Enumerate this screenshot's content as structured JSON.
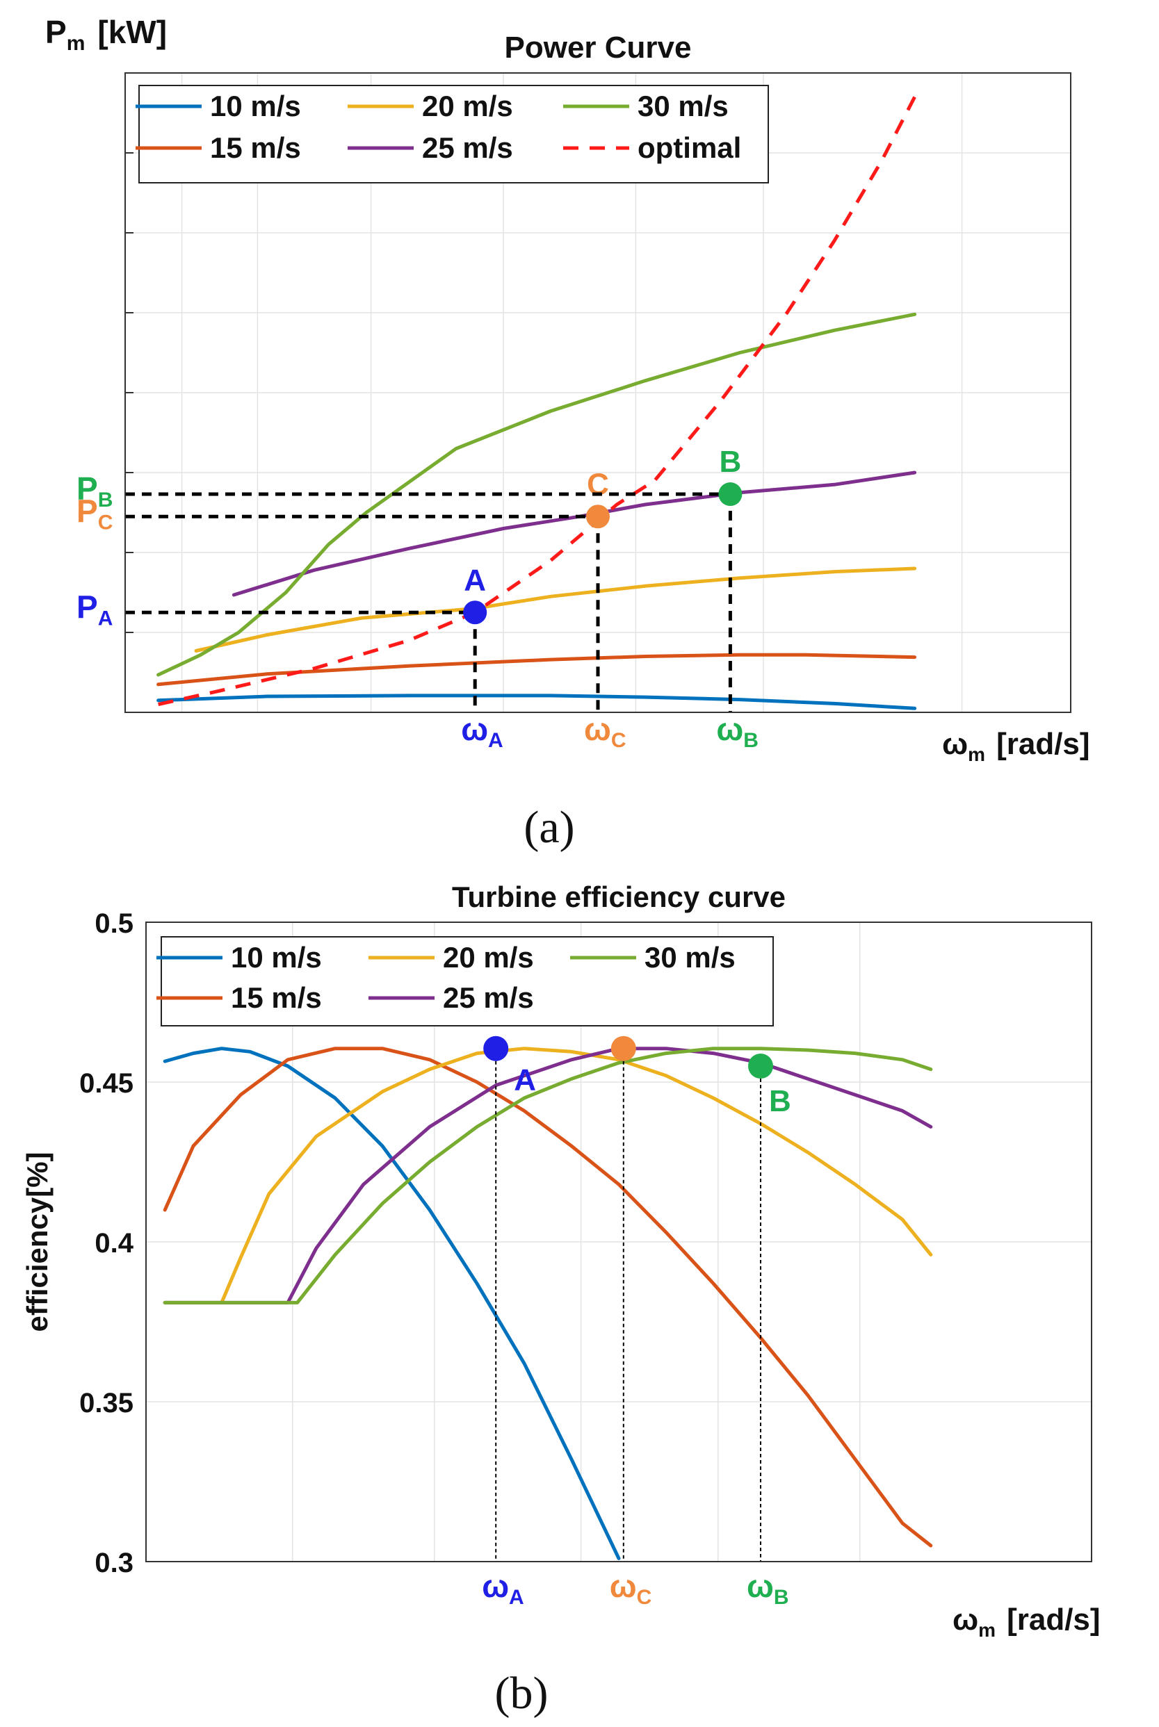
{
  "colors": {
    "v10": "#0072BD",
    "v15": "#D95319",
    "v20": "#EDB120",
    "v25": "#7E2F8E",
    "v30": "#77AC30",
    "optimal": "#FF1A1A",
    "A": "#1F1FE6",
    "B": "#1FAE50",
    "C": "#F0893C",
    "grid": "#E3E3E3",
    "axis": "#333333"
  },
  "chart_data": [
    {
      "type": "line",
      "panel_label": "(a)",
      "title": "Power Curve",
      "ylabel": {
        "base": "P",
        "sub": "m",
        "unit": "[kW]"
      },
      "xlabel": {
        "base": "ω",
        "sub": "m",
        "unit": "[rad/s]"
      },
      "xlim": [
        0,
        10
      ],
      "ylim": [
        0,
        8
      ],
      "grid": true,
      "legend": {
        "position": "top-left",
        "entries": [
          "10 m/s",
          "20 m/s",
          "30 m/s",
          "15 m/s",
          "25 m/s",
          "optimal"
        ]
      },
      "series": [
        {
          "name": "10 m/s",
          "color_key": "v10",
          "dashed": false,
          "points": [
            [
              0.35,
              0.15
            ],
            [
              1.5,
              0.2
            ],
            [
              3.0,
              0.21
            ],
            [
              4.5,
              0.21
            ],
            [
              5.5,
              0.19
            ],
            [
              6.5,
              0.16
            ],
            [
              7.5,
              0.11
            ],
            [
              8.35,
              0.05
            ]
          ]
        },
        {
          "name": "15 m/s",
          "color_key": "v15",
          "dashed": false,
          "points": [
            [
              0.35,
              0.35
            ],
            [
              1.5,
              0.48
            ],
            [
              3.0,
              0.58
            ],
            [
              4.5,
              0.66
            ],
            [
              5.5,
              0.7
            ],
            [
              6.5,
              0.72
            ],
            [
              7.2,
              0.72
            ],
            [
              8.35,
              0.69
            ]
          ]
        },
        {
          "name": "20 m/s",
          "color_key": "v20",
          "dashed": false,
          "points": [
            [
              0.75,
              0.77
            ],
            [
              1.5,
              0.97
            ],
            [
              2.5,
              1.18
            ],
            [
              3.7,
              1.3
            ],
            [
              4.5,
              1.45
            ],
            [
              5.5,
              1.58
            ],
            [
              6.5,
              1.68
            ],
            [
              7.5,
              1.76
            ],
            [
              8.35,
              1.8
            ]
          ]
        },
        {
          "name": "25 m/s",
          "color_key": "v25",
          "dashed": false,
          "points": [
            [
              1.15,
              1.47
            ],
            [
              2.0,
              1.78
            ],
            [
              3.0,
              2.05
            ],
            [
              4.0,
              2.3
            ],
            [
              4.8,
              2.45
            ],
            [
              5.5,
              2.6
            ],
            [
              6.5,
              2.75
            ],
            [
              7.5,
              2.85
            ],
            [
              8.35,
              3.0
            ]
          ]
        },
        {
          "name": "30 m/s",
          "color_key": "v30",
          "dashed": false,
          "points": [
            [
              0.35,
              0.47
            ],
            [
              0.8,
              0.72
            ],
            [
              1.2,
              1.0
            ],
            [
              1.7,
              1.5
            ],
            [
              2.15,
              2.1
            ],
            [
              2.55,
              2.5
            ],
            [
              3.5,
              3.3
            ],
            [
              4.5,
              3.77
            ],
            [
              5.5,
              4.15
            ],
            [
              6.5,
              4.5
            ],
            [
              7.5,
              4.78
            ],
            [
              8.35,
              4.98
            ]
          ]
        },
        {
          "name": "optimal",
          "color_key": "optimal",
          "dashed": true,
          "points": [
            [
              0.35,
              0.1
            ],
            [
              1.0,
              0.27
            ],
            [
              2.0,
              0.55
            ],
            [
              3.0,
              0.9
            ],
            [
              3.7,
              1.25
            ],
            [
              4.5,
              1.9
            ],
            [
              5.2,
              2.6
            ],
            [
              5.6,
              2.9
            ],
            [
              6.3,
              3.9
            ],
            [
              7.0,
              5.0
            ],
            [
              7.5,
              5.9
            ],
            [
              8.0,
              6.9
            ],
            [
              8.35,
              7.7
            ]
          ]
        }
      ],
      "operating_points": [
        {
          "label": "A",
          "color_key": "A",
          "x": 3.7,
          "y": 1.25,
          "x_tick": {
            "base": "ω",
            "sub": "A"
          },
          "y_tick": {
            "base": "P",
            "sub": "A"
          }
        },
        {
          "label": "C",
          "color_key": "C",
          "x": 5.0,
          "y": 2.45,
          "x_tick": {
            "base": "ω",
            "sub": "C"
          },
          "y_tick": {
            "base": "P",
            "sub": "C"
          }
        },
        {
          "label": "B",
          "color_key": "B",
          "x": 6.4,
          "y": 2.73,
          "x_tick": {
            "base": "ω",
            "sub": "B"
          },
          "y_tick": {
            "base": "P",
            "sub": "B"
          }
        }
      ]
    },
    {
      "type": "line",
      "panel_label": "(b)",
      "title": "Turbine efficiency curve",
      "ylabel": {
        "text": "efficiency[%]"
      },
      "xlabel": {
        "base": "ω",
        "sub": "m",
        "unit": "[rad/s]"
      },
      "xlim": [
        0,
        10
      ],
      "ylim": [
        0.3,
        0.5
      ],
      "yticks": [
        "0.3",
        "0.35",
        "0.4",
        "0.45",
        "0.5"
      ],
      "grid": true,
      "legend": {
        "position": "top-left",
        "entries": [
          "10 m/s",
          "20 m/s",
          "30 m/s",
          "15 m/s",
          "25 m/s"
        ]
      },
      "series": [
        {
          "name": "10 m/s",
          "color_key": "v10",
          "points": [
            [
              0.2,
              0.4565
            ],
            [
              0.5,
              0.459
            ],
            [
              0.8,
              0.4605
            ],
            [
              1.1,
              0.4595
            ],
            [
              1.5,
              0.455
            ],
            [
              2.0,
              0.445
            ],
            [
              2.5,
              0.43
            ],
            [
              3.0,
              0.41
            ],
            [
              3.5,
              0.387
            ],
            [
              4.0,
              0.362
            ],
            [
              4.5,
              0.332
            ],
            [
              5.0,
              0.301
            ]
          ]
        },
        {
          "name": "15 m/s",
          "color_key": "v15",
          "points": [
            [
              0.2,
              0.41
            ],
            [
              0.5,
              0.43
            ],
            [
              1.0,
              0.446
            ],
            [
              1.5,
              0.457
            ],
            [
              2.0,
              0.4605
            ],
            [
              2.5,
              0.4605
            ],
            [
              3.0,
              0.457
            ],
            [
              3.5,
              0.45
            ],
            [
              4.0,
              0.441
            ],
            [
              4.5,
              0.43
            ],
            [
              5.0,
              0.418
            ],
            [
              5.5,
              0.403
            ],
            [
              6.0,
              0.387
            ],
            [
              6.5,
              0.37
            ],
            [
              7.0,
              0.352
            ],
            [
              7.5,
              0.332
            ],
            [
              8.0,
              0.312
            ],
            [
              8.3,
              0.305
            ]
          ]
        },
        {
          "name": "20 m/s",
          "color_key": "v20",
          "points": [
            [
              0.2,
              0.381
            ],
            [
              0.8,
              0.381
            ],
            [
              1.0,
              0.395
            ],
            [
              1.3,
              0.415
            ],
            [
              1.8,
              0.433
            ],
            [
              2.5,
              0.447
            ],
            [
              3.0,
              0.454
            ],
            [
              3.5,
              0.459
            ],
            [
              4.0,
              0.4605
            ],
            [
              4.5,
              0.4595
            ],
            [
              5.0,
              0.457
            ],
            [
              5.5,
              0.452
            ],
            [
              6.0,
              0.445
            ],
            [
              6.5,
              0.437
            ],
            [
              7.0,
              0.428
            ],
            [
              7.5,
              0.418
            ],
            [
              8.0,
              0.407
            ],
            [
              8.3,
              0.396
            ]
          ]
        },
        {
          "name": "25 m/s",
          "color_key": "v25",
          "points": [
            [
              0.2,
              0.381
            ],
            [
              1.5,
              0.381
            ],
            [
              1.8,
              0.398
            ],
            [
              2.3,
              0.418
            ],
            [
              3.0,
              0.436
            ],
            [
              3.7,
              0.449
            ],
            [
              4.5,
              0.457
            ],
            [
              5.0,
              0.4605
            ],
            [
              5.5,
              0.4605
            ],
            [
              6.0,
              0.459
            ],
            [
              6.5,
              0.456
            ],
            [
              7.0,
              0.451
            ],
            [
              7.5,
              0.446
            ],
            [
              8.0,
              0.441
            ],
            [
              8.3,
              0.436
            ]
          ]
        },
        {
          "name": "30 m/s",
          "color_key": "v30",
          "points": [
            [
              0.2,
              0.381
            ],
            [
              1.6,
              0.381
            ],
            [
              2.0,
              0.396
            ],
            [
              2.5,
              0.412
            ],
            [
              3.0,
              0.425
            ],
            [
              3.5,
              0.436
            ],
            [
              4.0,
              0.445
            ],
            [
              4.5,
              0.451
            ],
            [
              5.0,
              0.456
            ],
            [
              5.5,
              0.459
            ],
            [
              6.0,
              0.4605
            ],
            [
              6.5,
              0.4605
            ],
            [
              7.0,
              0.46
            ],
            [
              7.5,
              0.459
            ],
            [
              8.0,
              0.457
            ],
            [
              8.3,
              0.454
            ]
          ]
        }
      ],
      "operating_points": [
        {
          "label": "A",
          "color_key": "A",
          "x": 3.7,
          "y": 0.4605,
          "x_tick": {
            "base": "ω",
            "sub": "A"
          }
        },
        {
          "label": "C",
          "color_key": "C",
          "x": 5.05,
          "y": 0.4605,
          "x_tick": {
            "base": "ω",
            "sub": "C"
          }
        },
        {
          "label": "B",
          "color_key": "B",
          "x": 6.5,
          "y": 0.455,
          "x_tick": {
            "base": "ω",
            "sub": "B"
          }
        }
      ]
    }
  ]
}
